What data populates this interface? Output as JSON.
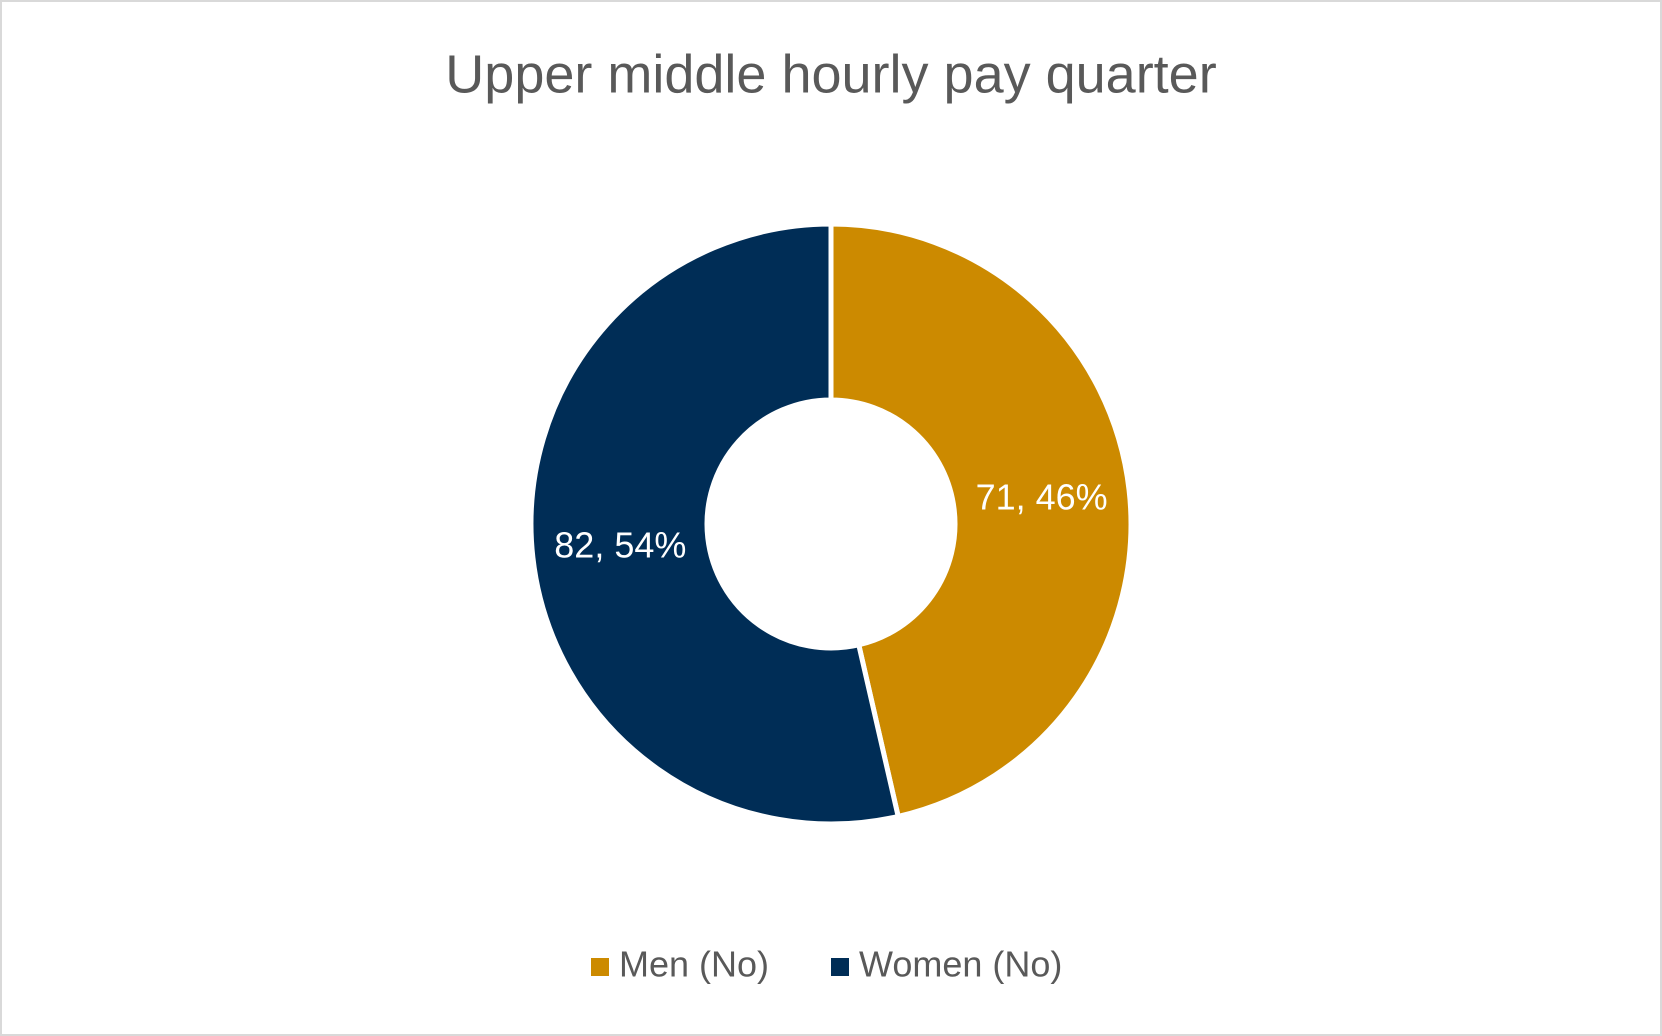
{
  "chart_data": {
    "type": "doughnut",
    "title": "Upper middle hourly pay quarter",
    "categories": [
      "Men (No)",
      "Women (No)"
    ],
    "values": [
      71,
      82
    ],
    "value_labels": [
      "71, 46%",
      "82, 54%"
    ],
    "colors": [
      "#cc8a00",
      "#002d56"
    ],
    "legend": "bottom"
  }
}
